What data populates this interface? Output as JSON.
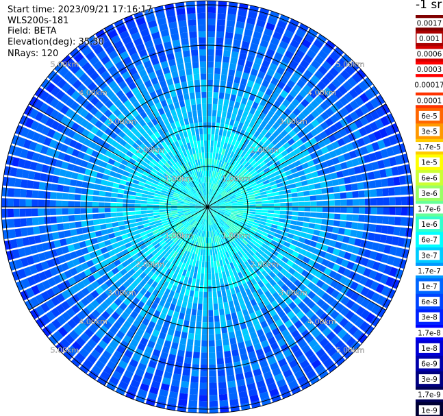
{
  "header": {
    "start_time": "Start time: 2023/09/21 17:16:17",
    "instrument": "WLS200s-181",
    "field": "Field: BETA",
    "elevation": "Elevation(deg): 35.30",
    "nrays": "NRays: 120"
  },
  "colorbar": {
    "units_label": "-1 sr",
    "ticks": [
      "0.0017",
      "0.001",
      "0.0006",
      "0.0003",
      "0.00017",
      "0.0001",
      "6e-5",
      "3e-5",
      "1.7e-5",
      "1e-5",
      "6e-6",
      "3e-6",
      "1.7e-6",
      "1e-6",
      "6e-7",
      "3e-7",
      "1.7e-7",
      "1e-7",
      "6e-8",
      "3e-8",
      "1.7e-8",
      "1e-8",
      "6e-9",
      "3e-9",
      "1.7e-9",
      "1e-9"
    ],
    "colors": [
      "#800000",
      "#aa0000",
      "#d40000",
      "#ff0000",
      "#ffffff",
      "#ff3300",
      "#ff6600",
      "#ff9900",
      "#ffcc00",
      "#ffff00",
      "#ccff33",
      "#99ff66",
      "#66ff99",
      "#33ffcc",
      "#00ffff",
      "#00ccff",
      "#0099ff",
      "#0066ff",
      "#0044ff",
      "#0022ff",
      "#0000ff",
      "#0000d4",
      "#0000aa",
      "#000080",
      "#000055",
      "#000033"
    ]
  },
  "chart_data": {
    "type": "heatmap",
    "projection": "polar PPI",
    "range_ring_labels": [
      "1.00km",
      "2.00km",
      "3.00km",
      "4.00km",
      "5.00km"
    ],
    "range_rings_km": [
      1,
      2,
      3,
      4,
      5
    ],
    "max_range_km": 5.1,
    "nrays": 120,
    "radial_profile": [
      {
        "range_km": 0.0,
        "value": "6e-7"
      },
      {
        "range_km": 1.0,
        "value": "6e-7"
      },
      {
        "range_km": 2.0,
        "value": "3e-7"
      },
      {
        "range_km": 3.0,
        "value": "1.7e-7"
      },
      {
        "range_km": 4.0,
        "value": "1e-7"
      },
      {
        "range_km": 5.0,
        "value": "6e-8"
      }
    ]
  }
}
